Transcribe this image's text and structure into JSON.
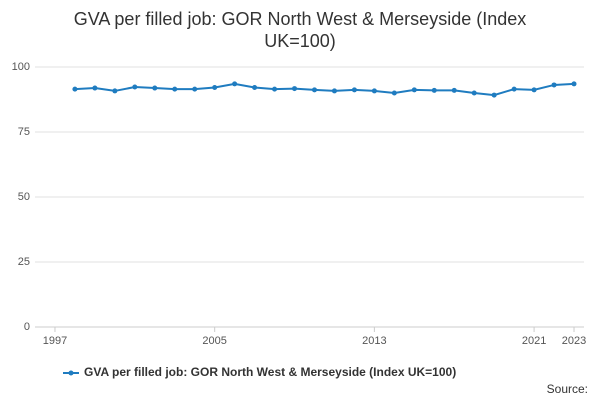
{
  "chart_data": {
    "type": "line",
    "title": "GVA per filled job: GOR North West & Merseyside (Index UK=100)",
    "x": [
      1998,
      1999,
      2000,
      2001,
      2002,
      2003,
      2004,
      2005,
      2006,
      2007,
      2008,
      2009,
      2010,
      2011,
      2012,
      2013,
      2014,
      2015,
      2016,
      2017,
      2018,
      2019,
      2020,
      2021,
      2022,
      2023
    ],
    "series": [
      {
        "name": "GVA per filled job: GOR North West & Merseyside (Index UK=100)",
        "color": "#1f7cc0",
        "values": [
          91.5,
          91.9,
          90.8,
          92.3,
          91.9,
          91.5,
          91.5,
          92.1,
          93.5,
          92.1,
          91.5,
          91.7,
          91.2,
          90.8,
          91.2,
          90.8,
          90.0,
          91.2,
          91.0,
          91.0,
          90.0,
          89.2,
          91.5,
          91.2,
          93.1,
          93.5
        ]
      }
    ],
    "xlim": [
      1996,
      2023.5
    ],
    "xticks": [
      1997,
      2005,
      2013,
      2021,
      2023
    ],
    "ylim": [
      0,
      100
    ],
    "yticks": [
      0,
      25,
      50,
      75,
      100
    ],
    "grid": true,
    "legend": "bottom",
    "source": "Source:"
  }
}
